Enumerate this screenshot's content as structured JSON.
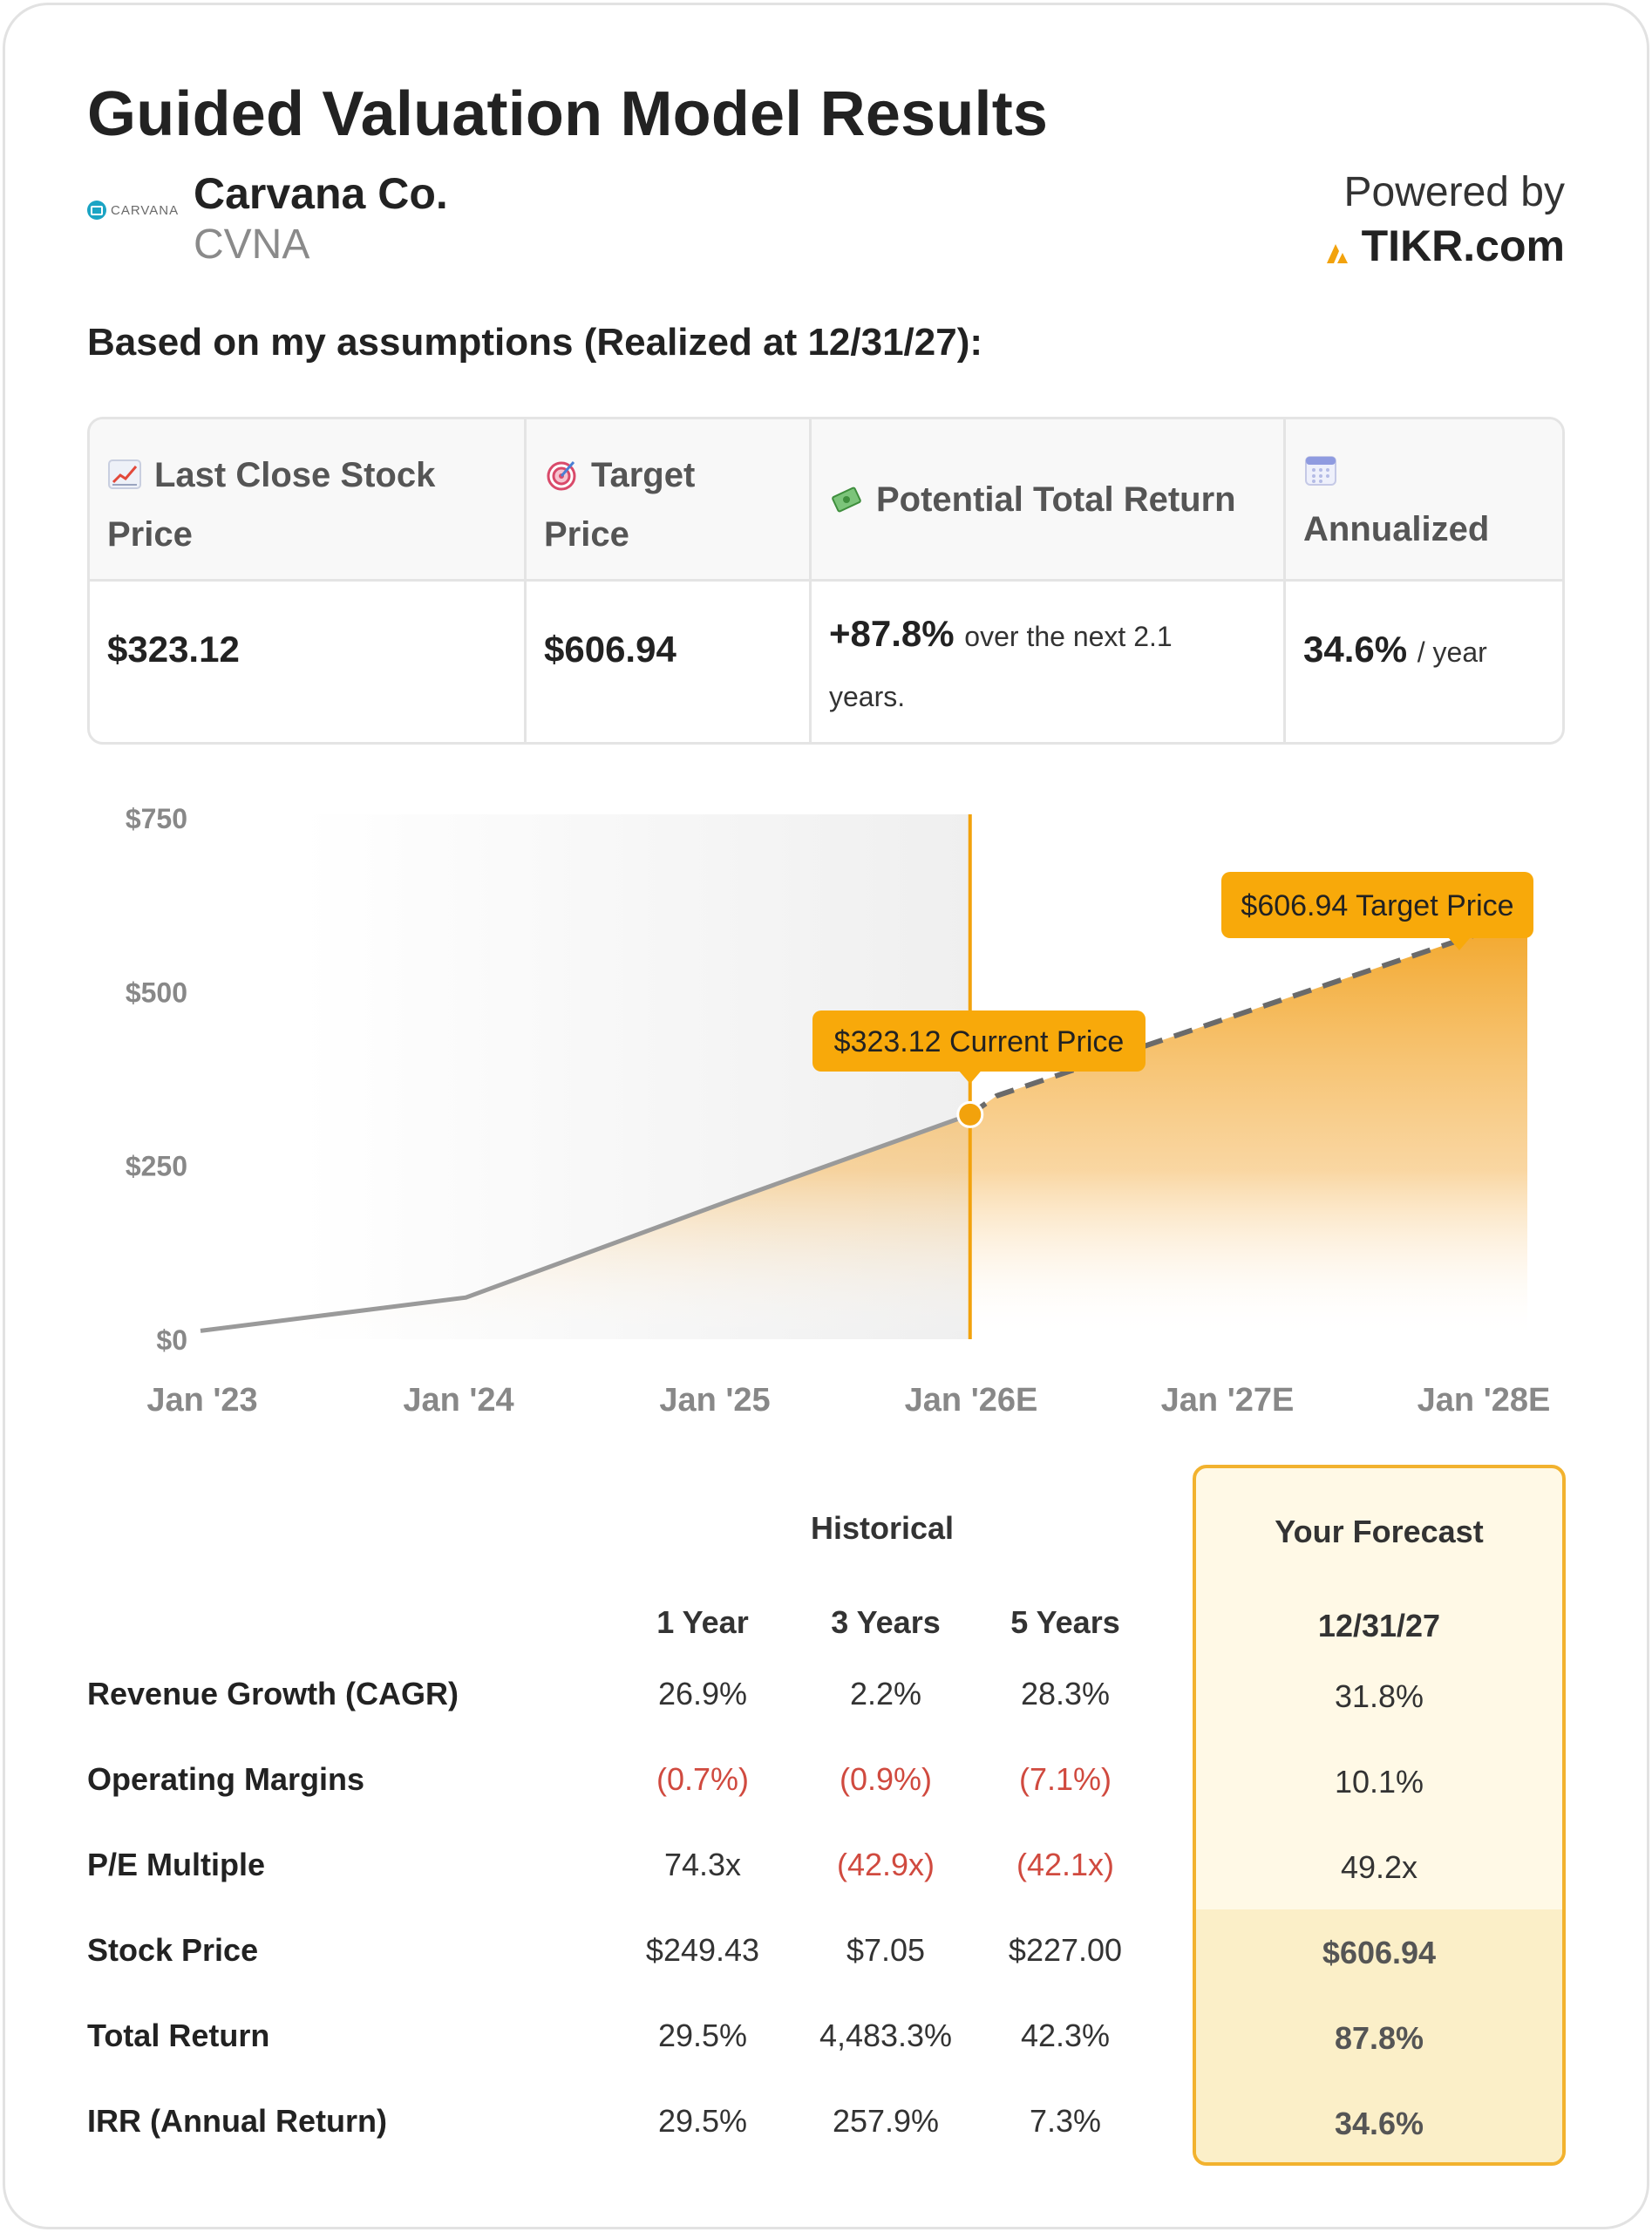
{
  "header": {
    "title": "Guided Valuation Model Results",
    "company_name": "Carvana Co.",
    "ticker": "CVNA",
    "logo_text": "CARVANA",
    "powered_by": "Powered by",
    "brand": "TIKR.com",
    "assumptions": "Based on my assumptions (Realized at 12/31/27):"
  },
  "summary": {
    "cols": [
      {
        "icon": "chart-increasing-icon",
        "label": "Last Close Stock Price",
        "value": "$323.12"
      },
      {
        "icon": "target-icon",
        "label": "Target Price",
        "value": "$606.94"
      },
      {
        "icon": "money-wings-icon",
        "label": "Potential Total Return",
        "value": "+87.8%",
        "suffix": "over the next 2.1",
        "suffix2": "years."
      },
      {
        "icon": "calendar-icon",
        "label": "Annualized",
        "value": "34.6%",
        "suffix": "/ year"
      }
    ]
  },
  "chart_data": {
    "type": "area",
    "x_labels": [
      "Jan '23",
      "Jan '24",
      "Jan '25",
      "Jan '26E",
      "Jan '27E",
      "Jan '28E"
    ],
    "y_ticks": [
      "$750",
      "$500",
      "$250",
      "$0"
    ],
    "y_tick_values": [
      750,
      500,
      250,
      0
    ],
    "ylim": [
      0,
      750
    ],
    "historical": {
      "x": [
        2023.0,
        2024.0,
        2025.0,
        2025.9
      ],
      "y": [
        12,
        60,
        200,
        323.12
      ]
    },
    "forecast": {
      "x": [
        2025.9,
        2026.0,
        2028.0
      ],
      "y": [
        323.12,
        350,
        606.94
      ]
    },
    "current_marker_x": 2025.9,
    "current_label": "$323.12 Current Price",
    "target_label": "$606.94 Target Price",
    "colors": {
      "accent": "#f2a20c",
      "line": "#9a9a9a",
      "dash": "#6a6a6a",
      "area_top": "#f2a628"
    }
  },
  "metrics": {
    "historical_header": "Historical",
    "forecast_header": "Your Forecast",
    "col_headers": [
      "1 Year",
      "3 Years",
      "5 Years"
    ],
    "forecast_col_header": "12/31/27",
    "rows": [
      {
        "label": "Revenue Growth (CAGR)",
        "values": [
          "26.9%",
          "2.2%",
          "28.3%"
        ],
        "forecast": "31.8%"
      },
      {
        "label": "Operating Margins",
        "values": [
          "(0.7%)",
          "(0.9%)",
          "(7.1%)"
        ],
        "forecast": "10.1%"
      },
      {
        "label": "P/E Multiple",
        "values": [
          "74.3x",
          "(42.9x)",
          "(42.1x)"
        ],
        "forecast": "49.2x"
      },
      {
        "label": "Stock Price",
        "values": [
          "$249.43",
          "$7.05",
          "$227.00"
        ],
        "forecast": "$606.94"
      },
      {
        "label": "Total Return",
        "values": [
          "29.5%",
          "4,483.3%",
          "42.3%"
        ],
        "forecast": "87.8%"
      },
      {
        "label": "IRR (Annual Return)",
        "values": [
          "29.5%",
          "257.9%",
          "7.3%"
        ],
        "forecast": "34.6%"
      }
    ]
  }
}
